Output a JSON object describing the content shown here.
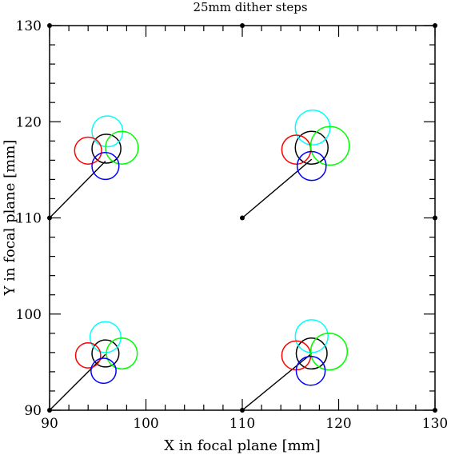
{
  "chart_data": {
    "type": "scatter",
    "title": "25mm dither steps",
    "xlabel": "X in focal plane [mm]",
    "ylabel": "Y in focal plane [mm]",
    "xlim": [
      90,
      130
    ],
    "ylim": [
      90,
      130
    ],
    "xticks": [
      90,
      100,
      110,
      120,
      130
    ],
    "yticks": [
      90,
      100,
      110,
      120,
      130
    ],
    "xtick_labels": [
      "90",
      "100",
      "110",
      "120",
      "130"
    ],
    "ytick_labels": [
      "90",
      "100",
      "110",
      "120",
      "130"
    ],
    "grid": false,
    "legend": false,
    "markers": [
      {
        "x": 90,
        "y": 90
      },
      {
        "x": 110,
        "y": 90
      },
      {
        "x": 130,
        "y": 90
      },
      {
        "x": 90,
        "y": 110
      },
      {
        "x": 110,
        "y": 110
      },
      {
        "x": 130,
        "y": 110
      },
      {
        "x": 90,
        "y": 130
      },
      {
        "x": 110,
        "y": 130
      },
      {
        "x": 130,
        "y": 130
      }
    ],
    "offset_lines": [
      {
        "from": [
          90,
          90
        ],
        "to": [
          95.8,
          95.8
        ]
      },
      {
        "from": [
          110,
          90
        ],
        "to": [
          117.2,
          95.9
        ]
      },
      {
        "from": [
          90,
          110
        ],
        "to": [
          95.8,
          115.9
        ]
      },
      {
        "from": [
          110,
          110
        ],
        "to": [
          117.2,
          116.1
        ]
      }
    ],
    "circle_groups": [
      {
        "circles": [
          {
            "color": "#000000",
            "x": 95.9,
            "y": 117.2,
            "r": 1.5
          },
          {
            "color": "#00ffff",
            "x": 96.0,
            "y": 119.0,
            "r": 1.6
          },
          {
            "color": "#ff0000",
            "x": 94.0,
            "y": 117.0,
            "r": 1.4
          },
          {
            "color": "#00ff00",
            "x": 97.5,
            "y": 117.3,
            "r": 1.7
          },
          {
            "color": "#0000ff",
            "x": 95.8,
            "y": 115.4,
            "r": 1.4
          }
        ]
      },
      {
        "circles": [
          {
            "color": "#000000",
            "x": 117.2,
            "y": 117.3,
            "r": 1.7
          },
          {
            "color": "#00ffff",
            "x": 117.3,
            "y": 119.4,
            "r": 1.8
          },
          {
            "color": "#ff0000",
            "x": 115.6,
            "y": 117.1,
            "r": 1.5
          },
          {
            "color": "#00ff00",
            "x": 119.1,
            "y": 117.5,
            "r": 2.0
          },
          {
            "color": "#0000ff",
            "x": 117.2,
            "y": 115.4,
            "r": 1.5
          }
        ]
      },
      {
        "circles": [
          {
            "color": "#000000",
            "x": 95.8,
            "y": 95.9,
            "r": 1.4
          },
          {
            "color": "#00ffff",
            "x": 95.8,
            "y": 97.6,
            "r": 1.6
          },
          {
            "color": "#ff0000",
            "x": 94.0,
            "y": 95.7,
            "r": 1.3
          },
          {
            "color": "#00ff00",
            "x": 97.5,
            "y": 95.9,
            "r": 1.6
          },
          {
            "color": "#0000ff",
            "x": 95.6,
            "y": 94.1,
            "r": 1.3
          }
        ]
      },
      {
        "circles": [
          {
            "color": "#000000",
            "x": 117.2,
            "y": 95.9,
            "r": 1.6
          },
          {
            "color": "#00ffff",
            "x": 117.2,
            "y": 97.7,
            "r": 1.7
          },
          {
            "color": "#ff0000",
            "x": 115.6,
            "y": 95.7,
            "r": 1.5
          },
          {
            "color": "#00ff00",
            "x": 119.0,
            "y": 96.1,
            "r": 1.9
          },
          {
            "color": "#0000ff",
            "x": 117.1,
            "y": 94.1,
            "r": 1.5
          }
        ]
      }
    ]
  }
}
